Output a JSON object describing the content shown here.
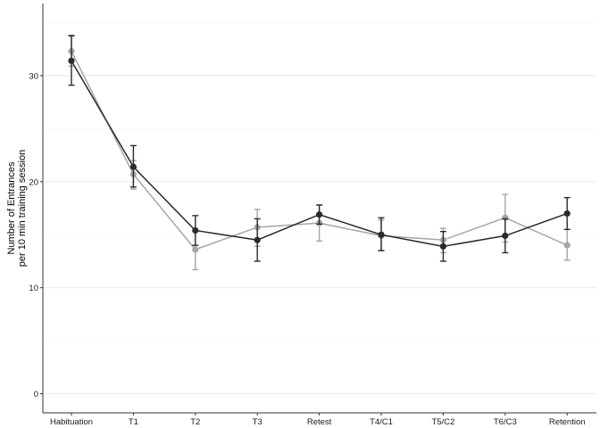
{
  "chart_data": {
    "type": "line",
    "title": "",
    "xlabel": "",
    "ylabel": [
      "Number of Entrances",
      "per 10 min training session"
    ],
    "categories": [
      "Habituation",
      "T1",
      "T2",
      "T3",
      "Retest",
      "T4/C1",
      "T5/C2",
      "T6/C3",
      "Retention"
    ],
    "ylim": [
      -1.8,
      36.8
    ],
    "yticks": [
      0,
      10,
      20,
      30
    ],
    "grid": "horizontal-major-and-minor",
    "legend": "none",
    "series": [
      {
        "color": "#a6a6a6",
        "values": [
          32.3,
          20.7,
          13.6,
          15.7,
          16.1,
          14.9,
          14.5,
          16.6,
          14.0
        ],
        "error_low": [
          30.9,
          19.3,
          11.7,
          13.9,
          14.4,
          13.5,
          13.3,
          14.3,
          12.6
        ],
        "error_high": [
          33.7,
          22.0,
          15.4,
          17.4,
          17.8,
          16.4,
          15.6,
          18.8,
          15.5
        ]
      },
      {
        "color": "#2a2a2a",
        "values": [
          31.4,
          21.4,
          15.4,
          14.5,
          16.9,
          15.0,
          13.9,
          14.9,
          17.0
        ],
        "error_low": [
          29.1,
          19.5,
          14.0,
          12.5,
          16.0,
          13.5,
          12.5,
          13.3,
          15.5
        ],
        "error_high": [
          33.8,
          23.4,
          16.8,
          16.5,
          17.8,
          16.6,
          15.3,
          16.5,
          18.5
        ]
      }
    ]
  }
}
